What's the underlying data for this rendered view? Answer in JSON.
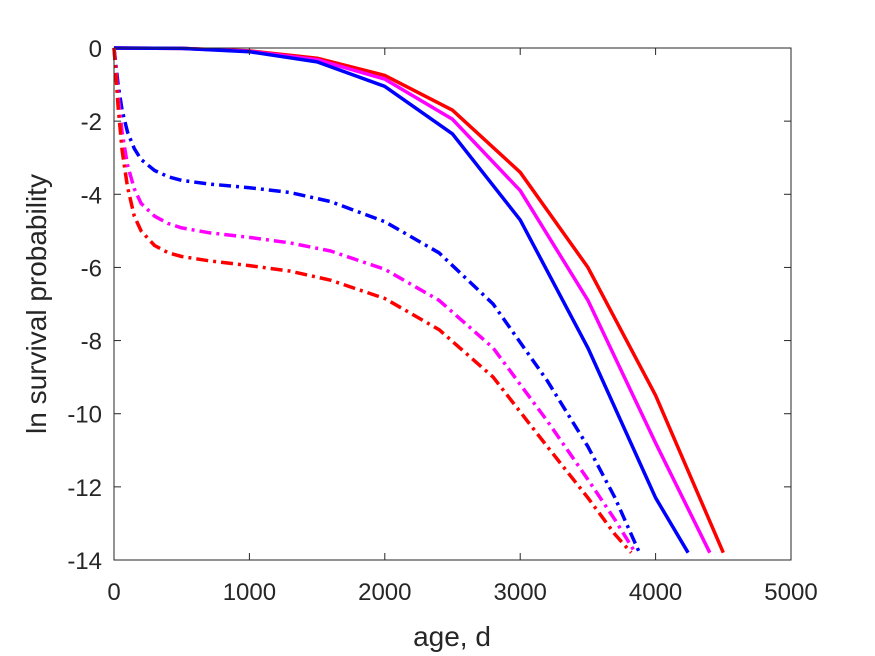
{
  "chart_data": {
    "type": "line",
    "title": "",
    "xlabel": "age, d",
    "ylabel": "ln survival probability",
    "xlim": [
      0,
      5000
    ],
    "ylim": [
      -14,
      0
    ],
    "xticks": [
      0,
      1000,
      2000,
      3000,
      4000,
      5000
    ],
    "yticks": [
      0,
      -2,
      -4,
      -6,
      -8,
      -10,
      -12,
      -14
    ],
    "grid": false,
    "legend": "none",
    "series": [
      {
        "color": "#ff0000",
        "style": "solid",
        "x": [
          0,
          500,
          1000,
          1500,
          2000,
          2500,
          3000,
          3500,
          4000,
          4500
        ],
        "y": [
          0,
          -0.01,
          -0.08,
          -0.28,
          -0.75,
          -1.7,
          -3.4,
          -6.0,
          -9.5,
          -13.8
        ]
      },
      {
        "color": "#ff00ff",
        "style": "solid",
        "x": [
          0,
          500,
          1000,
          1500,
          2000,
          2500,
          3000,
          3500,
          4000,
          4400
        ],
        "y": [
          0,
          -0.01,
          -0.09,
          -0.32,
          -0.85,
          -1.95,
          -3.9,
          -6.9,
          -10.8,
          -13.8
        ]
      },
      {
        "color": "#0000ff",
        "style": "solid",
        "x": [
          0,
          500,
          1000,
          1500,
          2000,
          2500,
          3000,
          3500,
          4000,
          4240
        ],
        "y": [
          0,
          -0.01,
          -0.1,
          -0.38,
          -1.05,
          -2.35,
          -4.7,
          -8.2,
          -12.3,
          -13.8
        ]
      },
      {
        "color": "#0000ff",
        "style": "dashdot",
        "x": [
          0,
          30,
          60,
          100,
          150,
          200,
          300,
          400,
          500,
          700,
          1000,
          1300,
          1600,
          2000,
          2400,
          2800,
          3200,
          3500,
          3700,
          3880
        ],
        "y": [
          0,
          -1.0,
          -1.7,
          -2.3,
          -2.75,
          -3.05,
          -3.35,
          -3.52,
          -3.62,
          -3.72,
          -3.82,
          -3.95,
          -4.2,
          -4.75,
          -5.6,
          -7.0,
          -9.1,
          -10.9,
          -12.3,
          -13.8
        ]
      },
      {
        "color": "#ff00ff",
        "style": "dashdot",
        "x": [
          0,
          30,
          60,
          100,
          150,
          200,
          300,
          400,
          500,
          700,
          1000,
          1300,
          1600,
          2000,
          2400,
          2800,
          3200,
          3500,
          3700,
          3850
        ],
        "y": [
          0,
          -1.3,
          -2.3,
          -3.2,
          -3.85,
          -4.25,
          -4.6,
          -4.8,
          -4.92,
          -5.05,
          -5.18,
          -5.33,
          -5.55,
          -6.05,
          -6.9,
          -8.2,
          -10.2,
          -11.8,
          -12.9,
          -13.8
        ]
      },
      {
        "color": "#ff0000",
        "style": "dashdot",
        "x": [
          0,
          30,
          60,
          100,
          150,
          200,
          300,
          400,
          500,
          700,
          1000,
          1300,
          1600,
          2000,
          2400,
          2800,
          3200,
          3500,
          3700,
          3820
        ],
        "y": [
          0,
          -1.6,
          -2.8,
          -3.8,
          -4.6,
          -5.0,
          -5.4,
          -5.6,
          -5.7,
          -5.82,
          -5.95,
          -6.1,
          -6.35,
          -6.85,
          -7.7,
          -9.0,
          -10.9,
          -12.3,
          -13.3,
          -13.8
        ]
      }
    ]
  }
}
